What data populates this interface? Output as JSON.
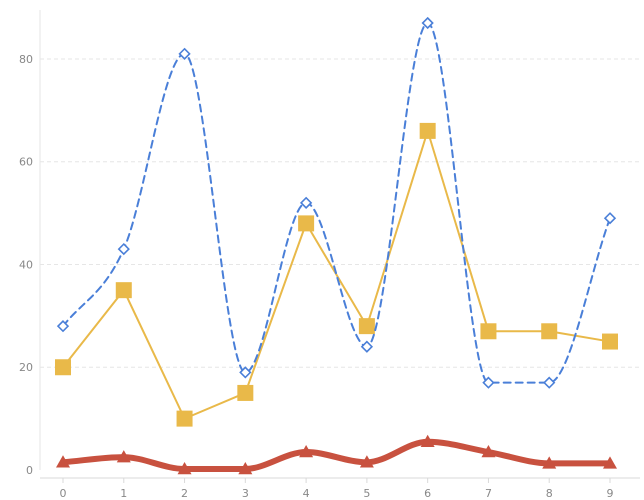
{
  "chart_data": {
    "type": "line",
    "x": [
      0,
      1,
      2,
      3,
      4,
      5,
      6,
      7,
      8,
      9
    ],
    "xlabel": "",
    "ylabel": "",
    "ylim": [
      0,
      90
    ],
    "yticks": [
      0,
      20,
      40,
      60,
      80
    ],
    "grid": true,
    "series": [
      {
        "values": [
          28,
          43,
          81,
          19,
          52,
          24,
          87,
          17,
          17,
          49
        ],
        "color": "#4a7fd8",
        "line": "dashed",
        "smooth": true,
        "marker": "diamond-open"
      },
      {
        "values": [
          20,
          35,
          10,
          15,
          48,
          28,
          66,
          27,
          27,
          25
        ],
        "color": "#e9b949",
        "line": "solid",
        "smooth": false,
        "marker": "square-filled"
      },
      {
        "values": [
          1.5,
          2.5,
          0.2,
          0.2,
          3.5,
          1.5,
          5.5,
          3.5,
          1.3,
          1.3
        ],
        "color": "#c8513f",
        "line": "solid-thick",
        "smooth": true,
        "marker": "triangle-filled"
      }
    ]
  }
}
